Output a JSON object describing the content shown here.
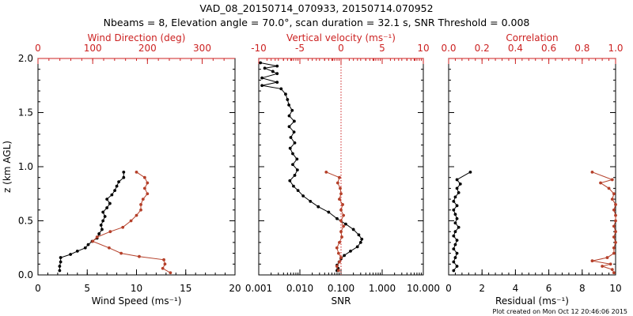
{
  "header": {
    "title": "VAD_08_20150714_070933, 20150714.070952",
    "subtitle": "Nbeams = 8, Elevation angle = 70.0°, scan duration = 32.1 s, SNR Threshold = 0.008"
  },
  "footer": {
    "created": "Plot created on Mon Oct 12 20:46:06 2015"
  },
  "colors": {
    "black": "#000000",
    "red": "#b5402a",
    "axis_red": "#cc2222"
  },
  "chart_data": [
    {
      "type": "line",
      "panel": "wind",
      "ylabel": "z (km AGL)",
      "ylim": [
        0,
        2.0
      ],
      "yticks": [
        0.0,
        0.5,
        1.0,
        1.5,
        2.0
      ],
      "ytick_labels": [
        "0.0",
        "0.5",
        "1.0",
        "1.5",
        "2.0"
      ],
      "bottom_axis": {
        "label": "Wind Speed (ms⁻¹)",
        "range": [
          0,
          20
        ],
        "ticks": [
          0,
          5,
          10,
          15,
          20
        ],
        "tick_labels": [
          "0",
          "5",
          "10",
          "15",
          "20"
        ]
      },
      "top_axis": {
        "label": "Wind Direction (deg)",
        "range": [
          0,
          360
        ],
        "ticks": [
          0,
          100,
          200,
          300
        ],
        "tick_labels": [
          "0",
          "100",
          "200",
          "300"
        ]
      },
      "series": [
        {
          "name": "Wind Speed",
          "color": "black",
          "axis": "bottom",
          "points": [
            [
              2.2,
              0.04
            ],
            [
              2.2,
              0.08
            ],
            [
              2.3,
              0.12
            ],
            [
              2.3,
              0.16
            ],
            [
              3.3,
              0.19
            ],
            [
              4.0,
              0.22
            ],
            [
              4.8,
              0.25
            ],
            [
              5.1,
              0.28
            ],
            [
              5.5,
              0.31
            ],
            [
              6.0,
              0.34
            ],
            [
              6.2,
              0.38
            ],
            [
              6.5,
              0.42
            ],
            [
              6.4,
              0.46
            ],
            [
              6.6,
              0.5
            ],
            [
              6.8,
              0.54
            ],
            [
              6.6,
              0.58
            ],
            [
              7.0,
              0.62
            ],
            [
              7.3,
              0.66
            ],
            [
              7.0,
              0.7
            ],
            [
              7.5,
              0.74
            ],
            [
              7.8,
              0.78
            ],
            [
              8.0,
              0.82
            ],
            [
              8.2,
              0.86
            ],
            [
              8.7,
              0.9
            ],
            [
              8.7,
              0.95
            ]
          ]
        },
        {
          "name": "Wind Direction",
          "color": "red",
          "axis": "top",
          "points": [
            [
              242,
              0.02
            ],
            [
              228,
              0.06
            ],
            [
              232,
              0.1
            ],
            [
              230,
              0.14
            ],
            [
              185,
              0.17
            ],
            [
              152,
              0.2
            ],
            [
              130,
              0.25
            ],
            [
              100,
              0.31
            ],
            [
              108,
              0.35
            ],
            [
              132,
              0.4
            ],
            [
              155,
              0.44
            ],
            [
              170,
              0.5
            ],
            [
              180,
              0.55
            ],
            [
              188,
              0.6
            ],
            [
              188,
              0.65
            ],
            [
              192,
              0.7
            ],
            [
              200,
              0.75
            ],
            [
              195,
              0.8
            ],
            [
              200,
              0.85
            ],
            [
              195,
              0.9
            ],
            [
              180,
              0.95
            ]
          ]
        }
      ]
    },
    {
      "type": "line",
      "panel": "vertical",
      "ylim": [
        0,
        2.0
      ],
      "bottom_axis": {
        "label": "SNR",
        "scale": "log",
        "range": [
          0.001,
          10
        ],
        "ticks": [
          0.001,
          0.01,
          0.1,
          1,
          10
        ],
        "tick_labels": [
          "0.001",
          "0.010",
          "0.100",
          "1.000",
          "10.000"
        ]
      },
      "top_axis": {
        "label": "Vertical velocity (ms⁻¹)",
        "range": [
          -10,
          10
        ],
        "ticks": [
          -10,
          -5,
          0,
          5,
          10
        ],
        "tick_labels": [
          "-10",
          "-5",
          "0",
          "5",
          "10"
        ]
      },
      "zero_line_top": 0,
      "series": [
        {
          "name": "SNR",
          "color": "black",
          "axis": "bottom",
          "points": [
            [
              0.08,
              0.04
            ],
            [
              0.085,
              0.06
            ],
            [
              0.08,
              0.09
            ],
            [
              0.09,
              0.12
            ],
            [
              0.1,
              0.15
            ],
            [
              0.12,
              0.18
            ],
            [
              0.17,
              0.22
            ],
            [
              0.25,
              0.26
            ],
            [
              0.3,
              0.3
            ],
            [
              0.32,
              0.33
            ],
            [
              0.27,
              0.37
            ],
            [
              0.2,
              0.42
            ],
            [
              0.13,
              0.47
            ],
            [
              0.08,
              0.52
            ],
            [
              0.05,
              0.58
            ],
            [
              0.028,
              0.63
            ],
            [
              0.018,
              0.68
            ],
            [
              0.012,
              0.73
            ],
            [
              0.009,
              0.78
            ],
            [
              0.007,
              0.82
            ],
            [
              0.0057,
              0.87
            ],
            [
              0.0075,
              0.92
            ],
            [
              0.0087,
              0.97
            ],
            [
              0.0067,
              1.02
            ],
            [
              0.0085,
              1.07
            ],
            [
              0.0067,
              1.12
            ],
            [
              0.0058,
              1.17
            ],
            [
              0.0075,
              1.22
            ],
            [
              0.006,
              1.27
            ],
            [
              0.0072,
              1.32
            ],
            [
              0.0055,
              1.37
            ],
            [
              0.0073,
              1.42
            ],
            [
              0.0055,
              1.47
            ],
            [
              0.0065,
              1.52
            ],
            [
              0.0054,
              1.57
            ],
            [
              0.005,
              1.62
            ],
            [
              0.0045,
              1.67
            ],
            [
              0.0035,
              1.72
            ],
            [
              0.0012,
              1.75
            ],
            [
              0.0028,
              1.78
            ],
            [
              0.0012,
              1.82
            ],
            [
              0.0028,
              1.86
            ],
            [
              0.0022,
              1.88
            ],
            [
              0.0014,
              1.91
            ],
            [
              0.0028,
              1.93
            ],
            [
              0.0011,
              1.96
            ]
          ]
        },
        {
          "name": "Vertical velocity",
          "color": "red",
          "axis": "top",
          "points": [
            [
              -0.3,
              0.04
            ],
            [
              -0.5,
              0.08
            ],
            [
              -0.2,
              0.12
            ],
            [
              0.0,
              0.16
            ],
            [
              -0.3,
              0.2
            ],
            [
              -0.5,
              0.25
            ],
            [
              -0.2,
              0.3
            ],
            [
              0.1,
              0.35
            ],
            [
              0.0,
              0.4
            ],
            [
              0.3,
              0.45
            ],
            [
              0.0,
              0.5
            ],
            [
              0.3,
              0.55
            ],
            [
              0.0,
              0.6
            ],
            [
              0.2,
              0.65
            ],
            [
              -0.2,
              0.7
            ],
            [
              0.0,
              0.75
            ],
            [
              -0.1,
              0.8
            ],
            [
              -0.4,
              0.85
            ],
            [
              -0.2,
              0.9
            ],
            [
              -1.8,
              0.95
            ]
          ]
        }
      ]
    },
    {
      "type": "line",
      "panel": "residual",
      "ylim": [
        0,
        2.0
      ],
      "bottom_axis": {
        "label": "Residual (ms⁻¹)",
        "range": [
          0,
          10
        ],
        "ticks": [
          0,
          2,
          4,
          6,
          8,
          10
        ],
        "tick_labels": [
          "0",
          "2",
          "4",
          "6",
          "8",
          "10"
        ]
      },
      "top_axis": {
        "label": "Correlation",
        "range": [
          0.0,
          1.0
        ],
        "ticks": [
          0.0,
          0.2,
          0.4,
          0.6,
          0.8,
          1.0
        ],
        "tick_labels": [
          "0.0",
          "0.2",
          "0.4",
          "0.6",
          "0.8",
          "1.0"
        ]
      },
      "series": [
        {
          "name": "Residual",
          "color": "black",
          "axis": "bottom",
          "points": [
            [
              0.3,
              0.04
            ],
            [
              0.5,
              0.08
            ],
            [
              0.3,
              0.12
            ],
            [
              0.4,
              0.16
            ],
            [
              0.5,
              0.2
            ],
            [
              0.3,
              0.24
            ],
            [
              0.4,
              0.28
            ],
            [
              0.5,
              0.32
            ],
            [
              0.3,
              0.36
            ],
            [
              0.4,
              0.4
            ],
            [
              0.6,
              0.44
            ],
            [
              0.4,
              0.48
            ],
            [
              0.5,
              0.52
            ],
            [
              0.4,
              0.56
            ],
            [
              0.3,
              0.6
            ],
            [
              0.5,
              0.64
            ],
            [
              0.3,
              0.68
            ],
            [
              0.4,
              0.72
            ],
            [
              0.6,
              0.76
            ],
            [
              0.5,
              0.8
            ],
            [
              0.7,
              0.84
            ],
            [
              0.5,
              0.88
            ],
            [
              1.3,
              0.95
            ]
          ]
        },
        {
          "name": "Correlation",
          "color": "red",
          "axis": "top",
          "points": [
            [
              0.99,
              0.02
            ],
            [
              0.98,
              0.05
            ],
            [
              0.92,
              0.08
            ],
            [
              0.97,
              0.1
            ],
            [
              0.86,
              0.13
            ],
            [
              0.95,
              0.16
            ],
            [
              0.99,
              0.2
            ],
            [
              0.99,
              0.25
            ],
            [
              1.0,
              0.3
            ],
            [
              0.99,
              0.35
            ],
            [
              1.0,
              0.4
            ],
            [
              0.99,
              0.45
            ],
            [
              1.0,
              0.5
            ],
            [
              1.0,
              0.55
            ],
            [
              0.99,
              0.6
            ],
            [
              1.0,
              0.65
            ],
            [
              0.98,
              0.7
            ],
            [
              0.99,
              0.75
            ],
            [
              0.96,
              0.8
            ],
            [
              0.91,
              0.85
            ],
            [
              0.98,
              0.88
            ],
            [
              0.86,
              0.95
            ]
          ]
        }
      ]
    }
  ]
}
